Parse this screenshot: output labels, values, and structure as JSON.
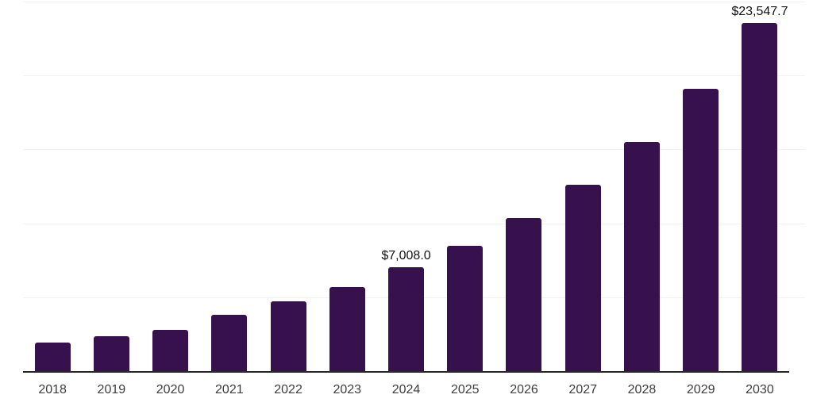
{
  "chart_data": {
    "type": "bar",
    "title": "",
    "xlabel": "",
    "ylabel": "",
    "categories": [
      "2018",
      "2019",
      "2020",
      "2021",
      "2022",
      "2023",
      "2024",
      "2025",
      "2026",
      "2027",
      "2028",
      "2029",
      "2030"
    ],
    "values": [
      1930,
      2350,
      2790,
      3800,
      4710,
      5670,
      7008.0,
      8450,
      10330,
      12630,
      15520,
      19100,
      23547.7
    ],
    "value_labels": [
      {
        "category": "2024",
        "text": "$7,008.0"
      },
      {
        "category": "2030",
        "text": "$23,547.7"
      }
    ],
    "ylim": [
      0,
      25000
    ],
    "gridline_values": [
      5000,
      10000,
      15000,
      20000,
      25000
    ],
    "grid": true,
    "legend": false,
    "y_axis_tick_labels_visible": false,
    "bar_color": "#37114E",
    "axis_line_color": "#262626",
    "gridline_color": "#f1f1f1",
    "tick_label_color": "#3d3d3d",
    "annotation_color": "#111111"
  }
}
